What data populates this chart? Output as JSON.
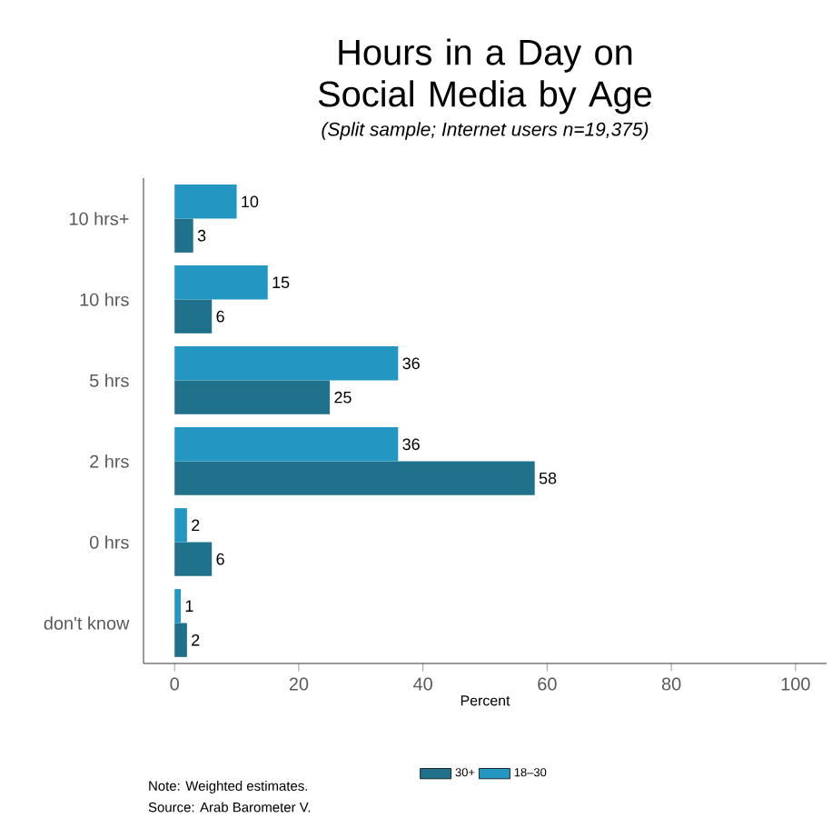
{
  "chart_data": {
    "type": "bar",
    "orientation": "horizontal",
    "title": "Hours in a Day on Social Media by Age",
    "subtitle": "(Split sample; Internet users n=19,375)",
    "categories": [
      "10 hrs+",
      "10 hrs",
      "5 hrs",
      "2 hrs",
      "0 hrs",
      "don't know"
    ],
    "series": [
      {
        "name": "30+",
        "color": "#20718b",
        "values": [
          3,
          6,
          25,
          58,
          6,
          2
        ]
      },
      {
        "name": "18–30",
        "color": "#2397c2",
        "values": [
          10,
          15,
          36,
          36,
          2,
          1
        ]
      }
    ],
    "xlabel": "Percent",
    "xlim": [
      -5,
      105
    ],
    "xticks": [
      0,
      20,
      40,
      60,
      80,
      100
    ],
    "data_labels": true,
    "legend": "bottom",
    "grid": false,
    "annotations": [
      "Note: Weighted estimates.",
      "Source: Arab Barometer V."
    ]
  }
}
